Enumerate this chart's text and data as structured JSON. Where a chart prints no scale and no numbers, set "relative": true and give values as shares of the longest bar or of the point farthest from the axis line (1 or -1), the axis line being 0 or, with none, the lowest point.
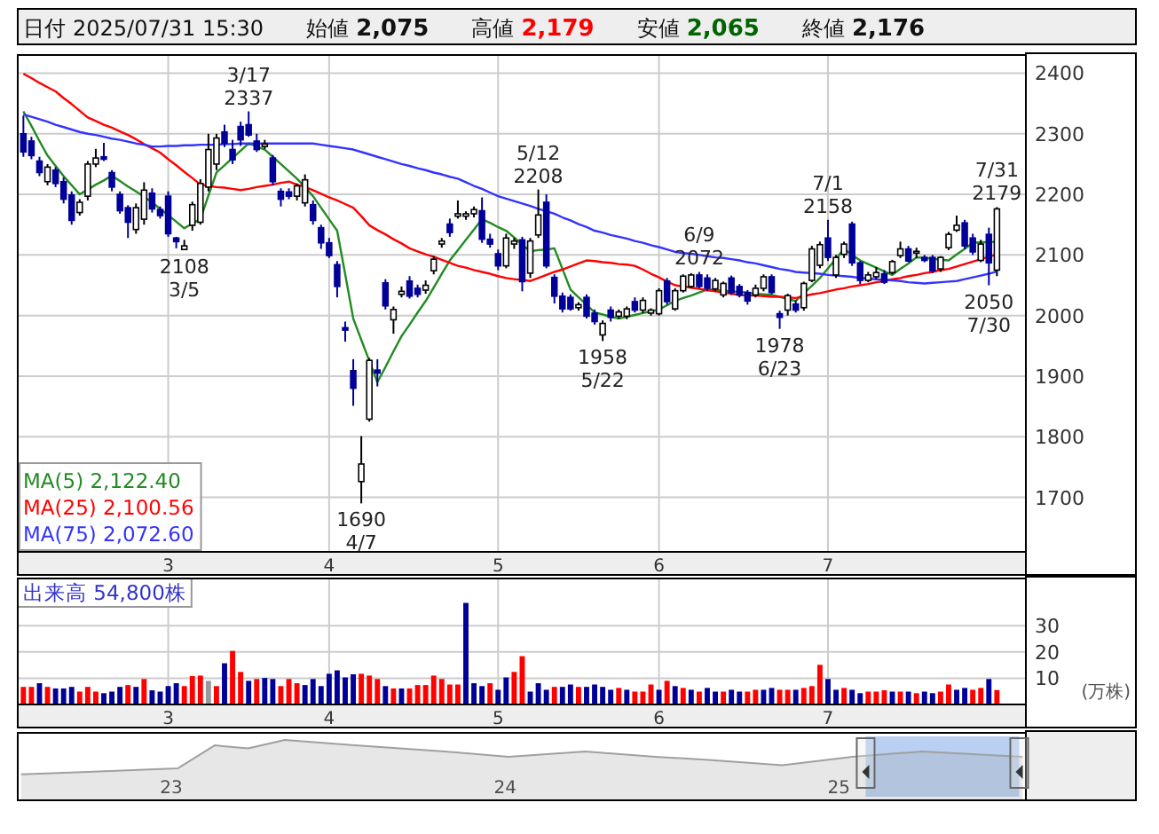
{
  "chart_data": [
    {
      "type": "candlestick",
      "annotations": [
        "日付",
        "2025/07/31 15:30",
        "始値",
        "2,075",
        "高値",
        "2,179",
        "安値",
        "2,065",
        "終値",
        "2,176",
        {
          "text": "3/17\n2337",
          "y": 2337
        },
        {
          "text": "2108\n3/5",
          "y": 2108
        },
        {
          "text": "1690\n4/7",
          "y": 1690
        },
        {
          "text": "5/12\n2208",
          "y": 2208
        },
        {
          "text": "1958\n5/22",
          "y": 1958
        },
        {
          "text": "6/9\n2072",
          "y": 2072
        },
        {
          "text": "1978\n6/23",
          "y": 1978
        },
        {
          "text": "7/1\n2158",
          "y": 2158
        },
        {
          "text": "7/31\n2179",
          "y": 2179
        },
        {
          "text": "2050\n7/30",
          "y": 2050
        }
      ],
      "categories": [
        null,
        null,
        null,
        null,
        null,
        null,
        null,
        null,
        null,
        null,
        null,
        null,
        null,
        null,
        null,
        null,
        null,
        null,
        "3",
        null,
        null,
        null,
        null,
        null,
        null,
        null,
        null,
        null,
        null,
        null,
        null,
        null,
        null,
        null,
        null,
        null,
        null,
        null,
        "4",
        null,
        null,
        null,
        null,
        null,
        null,
        null,
        null,
        null,
        null,
        null,
        null,
        null,
        null,
        null,
        null,
        null,
        null,
        null,
        null,
        "5",
        null,
        null,
        null,
        null,
        null,
        null,
        null,
        null,
        null,
        null,
        null,
        null,
        null,
        null,
        null,
        null,
        null,
        null,
        null,
        "6",
        null,
        null,
        null,
        null,
        null,
        null,
        null,
        null,
        null,
        null,
        null,
        null,
        null,
        null,
        null,
        null,
        null,
        null,
        null,
        null,
        "7",
        null,
        null,
        null,
        null,
        null,
        null,
        null,
        null,
        null,
        null,
        null,
        null,
        null,
        null,
        null,
        null,
        null,
        null,
        null,
        null,
        null
      ],
      "ohlc": [
        [
          2300,
          2330,
          2262,
          2270
        ],
        [
          2288,
          2295,
          2258,
          2264
        ],
        [
          2255,
          2262,
          2230,
          2236
        ],
        [
          2221,
          2250,
          2215,
          2245
        ],
        [
          2240,
          2245,
          2212,
          2218
        ],
        [
          2221,
          2228,
          2185,
          2192
        ],
        [
          2199,
          2205,
          2150,
          2157
        ],
        [
          2170,
          2192,
          2165,
          2187
        ],
        [
          2197,
          2255,
          2190,
          2250
        ],
        [
          2250,
          2275,
          2245,
          2260
        ],
        [
          2262,
          2285,
          2255,
          2258
        ],
        [
          2236,
          2240,
          2205,
          2212
        ],
        [
          2200,
          2205,
          2168,
          2173
        ],
        [
          2178,
          2182,
          2128,
          2154
        ],
        [
          2142,
          2185,
          2135,
          2178
        ],
        [
          2159,
          2220,
          2150,
          2207
        ],
        [
          2202,
          2210,
          2170,
          2176
        ],
        [
          2175,
          2180,
          2160,
          2165
        ],
        [
          2197,
          2205,
          2130,
          2135
        ],
        [
          2128,
          2130,
          2111,
          2122
        ],
        [
          2109,
          2125,
          2108,
          2115
        ],
        [
          2149,
          2188,
          2140,
          2183
        ],
        [
          2154,
          2225,
          2150,
          2218
        ],
        [
          2212,
          2300,
          2205,
          2274
        ],
        [
          2250,
          2300,
          2240,
          2293
        ],
        [
          2303,
          2315,
          2278,
          2284
        ],
        [
          2274,
          2290,
          2250,
          2257
        ],
        [
          2312,
          2320,
          2280,
          2290
        ],
        [
          2315,
          2337,
          2295,
          2298
        ],
        [
          2288,
          2300,
          2270,
          2274
        ],
        [
          2279,
          2290,
          2275,
          2283
        ],
        [
          2260,
          2265,
          2215,
          2221
        ],
        [
          2205,
          2210,
          2180,
          2192
        ],
        [
          2204,
          2210,
          2192,
          2197
        ],
        [
          2197,
          2218,
          2190,
          2214
        ],
        [
          2186,
          2233,
          2180,
          2224
        ],
        [
          2183,
          2190,
          2150,
          2157
        ],
        [
          2145,
          2150,
          2110,
          2120
        ],
        [
          2120,
          2128,
          2095,
          2099
        ],
        [
          2084,
          2090,
          2030,
          2048
        ],
        [
          1980,
          1990,
          1957,
          1976
        ],
        [
          1909,
          1928,
          1851,
          1880
        ],
        [
          1726,
          1801,
          1690,
          1755
        ],
        [
          1829,
          1930,
          1825,
          1926
        ],
        [
          1910,
          1928,
          1883,
          1905
        ],
        [
          2054,
          2060,
          2010,
          2016
        ],
        [
          1993,
          2015,
          1970,
          2010
        ],
        [
          2035,
          2048,
          2030,
          2040
        ],
        [
          2057,
          2065,
          2028,
          2032
        ],
        [
          2045,
          2051,
          2030,
          2035
        ],
        [
          2042,
          2058,
          2036,
          2050
        ],
        [
          2074,
          2098,
          2068,
          2093
        ],
        [
          2118,
          2128,
          2112,
          2123
        ],
        [
          2151,
          2160,
          2130,
          2137
        ],
        [
          2164,
          2190,
          2160,
          2168
        ],
        [
          2164,
          2172,
          2158,
          2168
        ],
        [
          2168,
          2180,
          2162,
          2175
        ],
        [
          2173,
          2195,
          2120,
          2126
        ],
        [
          2126,
          2135,
          2112,
          2118
        ],
        [
          2102,
          2109,
          2075,
          2082
        ],
        [
          2082,
          2135,
          2078,
          2128
        ],
        [
          2118,
          2128,
          2110,
          2123
        ],
        [
          2125,
          2130,
          2040,
          2056
        ],
        [
          2070,
          2128,
          2062,
          2123
        ],
        [
          2133,
          2208,
          2128,
          2166
        ],
        [
          2187,
          2200,
          2078,
          2082
        ],
        [
          2063,
          2068,
          2020,
          2032
        ],
        [
          2032,
          2038,
          2005,
          2011
        ],
        [
          2030,
          2035,
          2008,
          2011
        ],
        [
          2013,
          2022,
          2008,
          2018
        ],
        [
          2030,
          2035,
          1995,
          1999
        ],
        [
          2004,
          2010,
          1985,
          1990
        ],
        [
          1968,
          1992,
          1958,
          1987
        ],
        [
          2009,
          2015,
          1990,
          1997
        ],
        [
          1999,
          2010,
          1995,
          2006
        ],
        [
          1999,
          2015,
          1994,
          2011
        ],
        [
          2023,
          2030,
          2005,
          2009
        ],
        [
          2009,
          2030,
          2004,
          2025
        ],
        [
          2004,
          2012,
          2000,
          2009
        ],
        [
          2003,
          2045,
          2000,
          2041
        ],
        [
          2057,
          2062,
          2018,
          2023
        ],
        [
          2011,
          2045,
          2008,
          2041
        ],
        [
          2041,
          2068,
          2038,
          2065
        ],
        [
          2048,
          2070,
          2045,
          2067
        ],
        [
          2067,
          2072,
          2045,
          2048
        ],
        [
          2062,
          2068,
          2040,
          2045
        ],
        [
          2044,
          2062,
          2040,
          2058
        ],
        [
          2034,
          2056,
          2030,
          2053
        ],
        [
          2062,
          2066,
          2034,
          2038
        ],
        [
          2048,
          2052,
          2030,
          2034
        ],
        [
          2038,
          2042,
          2018,
          2024
        ],
        [
          2034,
          2051,
          2030,
          2045
        ],
        [
          2045,
          2068,
          2040,
          2064
        ],
        [
          2064,
          2068,
          2035,
          2038
        ],
        [
          2003,
          2008,
          1978,
          1997
        ],
        [
          2009,
          2036,
          2000,
          2033
        ],
        [
          2019,
          2025,
          2005,
          2009
        ],
        [
          2013,
          2056,
          2008,
          2053
        ],
        [
          2058,
          2115,
          2055,
          2110
        ],
        [
          2083,
          2122,
          2078,
          2117
        ],
        [
          2128,
          2158,
          2090,
          2096
        ],
        [
          2067,
          2100,
          2062,
          2096
        ],
        [
          2101,
          2122,
          2095,
          2118
        ],
        [
          2151,
          2155,
          2082,
          2087
        ],
        [
          2087,
          2090,
          2052,
          2058
        ],
        [
          2058,
          2072,
          2055,
          2067
        ],
        [
          2064,
          2080,
          2060,
          2071
        ],
        [
          2069,
          2075,
          2052,
          2055
        ],
        [
          2071,
          2092,
          2068,
          2089
        ],
        [
          2099,
          2122,
          2095,
          2110
        ],
        [
          2110,
          2115,
          2088,
          2090
        ],
        [
          2104,
          2112,
          2095,
          2106
        ],
        [
          2096,
          2100,
          2088,
          2091
        ],
        [
          2096,
          2100,
          2070,
          2074
        ],
        [
          2077,
          2098,
          2072,
          2096
        ],
        [
          2112,
          2138,
          2108,
          2134
        ],
        [
          2141,
          2165,
          2138,
          2149
        ],
        [
          2153,
          2158,
          2110,
          2115
        ],
        [
          2128,
          2135,
          2100,
          2105
        ],
        [
          2091,
          2125,
          2088,
          2118
        ],
        [
          2134,
          2145,
          2050,
          2087
        ],
        [
          2075,
          2179,
          2065,
          2176
        ]
      ],
      "series": [
        {
          "name": "MA(5) 2,122.40",
          "color": "#228b22",
          "type": "line",
          "values": [
            2337,
            2313,
            2288,
            2264,
            2247,
            2230,
            2215,
            2200,
            2208,
            2216,
            2223,
            2231,
            2222,
            2213,
            2205,
            2196,
            2187,
            2176,
            2166,
            2155,
            2144,
            2152,
            2159,
            2198,
            2236,
            2248,
            2260,
            2272,
            2284,
            2279,
            2274,
            2262,
            2250,
            2238,
            2226,
            2212,
            2197,
            2178,
            2159,
            2140,
            2068,
            1995,
            1960,
            1925,
            1890,
            1915,
            1941,
            1966,
            1985,
            2005,
            2024,
            2046,
            2069,
            2091,
            2108,
            2125,
            2142,
            2159,
            2153,
            2146,
            2140,
            2129,
            2117,
            2106,
            2108,
            2109,
            2111,
            2077,
            2043,
            2030,
            2018,
            2005,
            2002,
            1998,
            1995,
            1998,
            2001,
            2004,
            2007,
            2010,
            2017,
            2024,
            2029,
            2033,
            2038,
            2043,
            2042,
            2041,
            2040,
            2039,
            2038,
            2036,
            2035,
            2034,
            2031,
            2027,
            2024,
            2037,
            2049,
            2062,
            2078,
            2094,
            2110,
            2100,
            2091,
            2085,
            2079,
            2073,
            2067,
            2077,
            2086,
            2096,
            2095,
            2094,
            2092,
            2091,
            2101,
            2110,
            2120,
            2121,
            2121,
            2122
          ]
        },
        {
          "name": "MA(25) 2,100.56",
          "color": "#ff0000",
          "type": "line",
          "values": [
            2399,
            2392,
            2384,
            2377,
            2370,
            2359,
            2349,
            2338,
            2327,
            2321,
            2315,
            2310,
            2304,
            2298,
            2291,
            2283,
            2276,
            2269,
            2258,
            2248,
            2237,
            2227,
            2216,
            2214,
            2212,
            2211,
            2209,
            2207,
            2209,
            2212,
            2214,
            2216,
            2219,
            2221,
            2216,
            2212,
            2207,
            2201,
            2195,
            2190,
            2184,
            2178,
            2164,
            2149,
            2141,
            2134,
            2126,
            2119,
            2111,
            2106,
            2101,
            2097,
            2092,
            2087,
            2082,
            2079,
            2075,
            2072,
            2069,
            2065,
            2062,
            2060,
            2059,
            2057,
            2062,
            2067,
            2072,
            2076,
            2081,
            2086,
            2091,
            2090,
            2088,
            2087,
            2085,
            2084,
            2082,
            2076,
            2069,
            2063,
            2056,
            2050,
            2048,
            2046,
            2044,
            2042,
            2040,
            2038,
            2036,
            2034,
            2033,
            2033,
            2032,
            2031,
            2031,
            2030,
            2029,
            2032,
            2035,
            2037,
            2040,
            2043,
            2045,
            2048,
            2050,
            2052,
            2055,
            2057,
            2060,
            2062,
            2065,
            2067,
            2070,
            2072,
            2075,
            2077,
            2081,
            2085,
            2089,
            2093,
            2097,
            2101
          ]
        },
        {
          "name": "MA(75) 2,072.60",
          "color": "#3333ff",
          "type": "line",
          "values": [
            2332,
            2328,
            2324,
            2320,
            2315,
            2311,
            2307,
            2303,
            2300,
            2298,
            2295,
            2292,
            2290,
            2287,
            2284,
            2282,
            2279,
            2279,
            2280,
            2280,
            2281,
            2281,
            2282,
            2282,
            2282,
            2283,
            2283,
            2284,
            2284,
            2284,
            2284,
            2284,
            2284,
            2284,
            2284,
            2284,
            2284,
            2282,
            2280,
            2278,
            2276,
            2274,
            2270,
            2266,
            2262,
            2258,
            2254,
            2250,
            2247,
            2243,
            2240,
            2236,
            2233,
            2229,
            2226,
            2220,
            2214,
            2209,
            2203,
            2197,
            2193,
            2189,
            2185,
            2181,
            2176,
            2172,
            2168,
            2162,
            2157,
            2151,
            2146,
            2140,
            2137,
            2133,
            2130,
            2127,
            2123,
            2120,
            2116,
            2113,
            2109,
            2105,
            2103,
            2102,
            2100,
            2098,
            2096,
            2095,
            2093,
            2091,
            2088,
            2086,
            2083,
            2080,
            2077,
            2075,
            2072,
            2071,
            2070,
            2069,
            2067,
            2066,
            2065,
            2064,
            2062,
            2061,
            2060,
            2059,
            2058,
            2057,
            2055,
            2054,
            2053,
            2054,
            2055,
            2056,
            2057,
            2060,
            2063,
            2066,
            2069,
            2073
          ]
        }
      ],
      "ylim": [
        1610,
        2430
      ],
      "yticks": [
        1700,
        1800,
        1900,
        2000,
        2100,
        2200,
        2300,
        2400
      ],
      "grid": true,
      "legend": "bottom left"
    },
    {
      "type": "bar",
      "title": "出来高 54,800株",
      "ylabel": "(万株)",
      "categories": [
        null,
        null,
        null,
        null,
        null,
        null,
        null,
        null,
        null,
        null,
        null,
        null,
        null,
        null,
        null,
        null,
        null,
        null,
        "3",
        null,
        null,
        null,
        null,
        null,
        null,
        null,
        null,
        null,
        null,
        null,
        null,
        null,
        null,
        null,
        null,
        null,
        null,
        null,
        "4",
        null,
        null,
        null,
        null,
        null,
        null,
        null,
        null,
        null,
        null,
        null,
        null,
        null,
        null,
        null,
        null,
        null,
        null,
        null,
        null,
        "5",
        null,
        null,
        null,
        null,
        null,
        null,
        null,
        null,
        null,
        null,
        null,
        null,
        null,
        null,
        null,
        null,
        null,
        null,
        null,
        "6",
        null,
        null,
        null,
        null,
        null,
        null,
        null,
        null,
        null,
        null,
        null,
        null,
        null,
        null,
        null,
        null,
        null,
        null,
        null,
        null,
        "7",
        null,
        null,
        null,
        null,
        null,
        null,
        null,
        null,
        null,
        null,
        null,
        null,
        null,
        null,
        null,
        null,
        null,
        null,
        null,
        null,
        null
      ],
      "values": [
        6.7,
        6.7,
        8.1,
        6.7,
        6.1,
        6.1,
        6.7,
        4.9,
        6.7,
        4.9,
        4.3,
        4.9,
        6.7,
        7.4,
        6.7,
        9.7,
        5.4,
        4.9,
        7.0,
        8.1,
        7.0,
        10.8,
        11.0,
        9.0,
        7.0,
        15.7,
        20.4,
        12.4,
        9.0,
        9.7,
        10.1,
        9.7,
        7.0,
        9.7,
        8.1,
        7.4,
        9.7,
        7.0,
        11.7,
        13.0,
        10.3,
        11.5,
        11.7,
        11.0,
        9.7,
        7.0,
        6.1,
        6.1,
        6.1,
        7.4,
        7.4,
        11.0,
        9.7,
        7.6,
        7.6,
        38.7,
        8.1,
        7.0,
        8.1,
        5.6,
        10.3,
        12.4,
        18.4,
        4.9,
        8.1,
        5.6,
        6.7,
        6.7,
        7.6,
        6.7,
        6.7,
        7.6,
        6.7,
        5.6,
        6.3,
        5.6,
        4.9,
        4.9,
        7.6,
        5.6,
        9.0,
        7.0,
        6.3,
        5.6,
        4.9,
        6.3,
        4.9,
        4.9,
        5.6,
        4.9,
        4.9,
        5.6,
        5.6,
        6.3,
        5.6,
        5.6,
        5.6,
        6.3,
        7.0,
        15.1,
        9.7,
        5.6,
        6.3,
        5.6,
        4.3,
        4.9,
        4.9,
        5.4,
        4.9,
        4.9,
        4.9,
        4.3,
        4.9,
        4.3,
        4.9,
        7.6,
        5.6,
        6.3,
        5.6,
        6.3,
        9.7,
        5.5
      ],
      "colors": [
        "#ff0000",
        "#ff0000",
        "#000099",
        "#ff0000",
        "#000099",
        "#000099",
        "#000099",
        "#ff0000",
        "#ff0000",
        "#ff0000",
        "#000099",
        "#000099",
        "#000099",
        "#ff0000",
        "#000099",
        "#ff0000",
        "#000099",
        "#000099",
        "#000099",
        "#000099",
        "#ff0000",
        "#ff0000",
        "#ff0000",
        "#999999",
        "#ff0000",
        "#000099",
        "#ff0000",
        "#ff0000",
        "#000099",
        "#ff0000",
        "#000099",
        "#000099",
        "#ff0000",
        "#ff0000",
        "#ff0000",
        "#000099",
        "#000099",
        "#000099",
        "#000099",
        "#000099",
        "#000099",
        "#000099",
        "#ff0000",
        "#ff0000",
        "#ff0000",
        "#000099",
        "#ff0000",
        "#000099",
        "#ff0000",
        "#ff0000",
        "#ff0000",
        "#ff0000",
        "#ff0000",
        "#ff0000",
        "#ff0000",
        "#000099",
        "#000099",
        "#000099",
        "#ff0000",
        "#000099",
        "#000099",
        "#ff0000",
        "#ff0000",
        "#000099",
        "#000099",
        "#000099",
        "#ff0000",
        "#000099",
        "#000099",
        "#ff0000",
        "#000099",
        "#000099",
        "#000099",
        "#000099",
        "#ff0000",
        "#000099",
        "#ff0000",
        "#ff0000",
        "#ff0000",
        "#000099",
        "#ff0000",
        "#000099",
        "#ff0000",
        "#000099",
        "#ff0000",
        "#000099",
        "#000099",
        "#ff0000",
        "#000099",
        "#000099",
        "#ff0000",
        "#ff0000",
        "#000099",
        "#000099",
        "#ff0000",
        "#ff0000",
        "#000099",
        "#ff0000",
        "#ff0000",
        "#ff0000",
        "#000099",
        "#000099",
        "#ff0000",
        "#000099",
        "#000099",
        "#ff0000",
        "#ff0000",
        "#ff0000",
        "#000099",
        "#ff0000",
        "#000099",
        "#ff0000",
        "#000099",
        "#000099",
        "#ff0000",
        "#ff0000",
        "#000099",
        "#000099",
        "#ff0000",
        "#ff0000",
        "#000099",
        "#ff0000"
      ],
      "ylim": [
        0,
        48
      ],
      "yticks": [
        10,
        20,
        30
      ],
      "grid": true
    },
    {
      "type": "area",
      "relative": true,
      "tick_labels": "x",
      "series": [
        {
          "color": "#a0a0a0",
          "x": [
            2022.55,
            2022.75,
            2023.02,
            2023.13,
            2023.23,
            2023.34,
            2023.55,
            2023.82,
            2024.01,
            2024.24,
            2024.45,
            2024.61,
            2024.83,
            2025.04,
            2025.25,
            2025.55
          ],
          "values": [
            0.43,
            0.47,
            0.53,
            0.91,
            0.86,
            1,
            0.91,
            0.81,
            0.72,
            0.81,
            0.72,
            0.67,
            0.58,
            0.72,
            0.81,
            0.72
          ]
        }
      ],
      "xlim": [
        2022.54,
        2025.56
      ],
      "xticks": [
        {
          "value": 2023,
          "label": "23"
        },
        {
          "value": 2024,
          "label": "24"
        },
        {
          "value": 2025,
          "label": "25"
        }
      ],
      "bands": [
        {
          "axis": "x",
          "from": 2025.08,
          "to": 2025.54,
          "color": "#a8c4f0"
        }
      ]
    }
  ]
}
